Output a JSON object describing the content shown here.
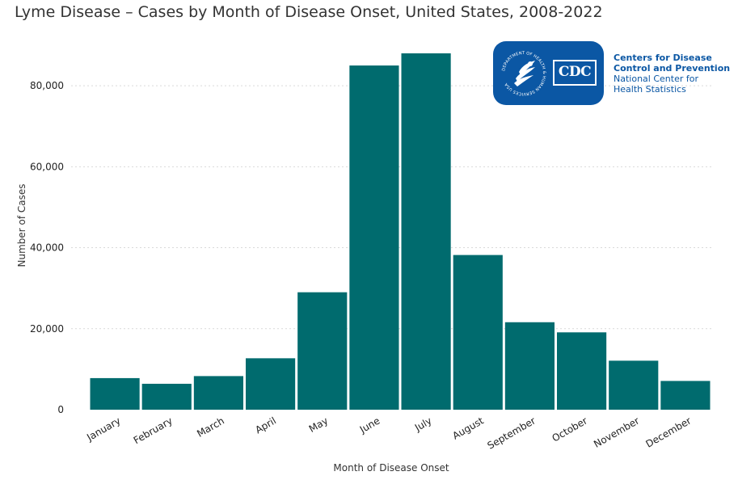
{
  "title": "Lyme Disease – Cases by Month of Disease Onset, United States, 2008-2022",
  "logo": {
    "mark": "CDC",
    "seal_text": "DEPARTMENT OF HEALTH & HUMAN SERVICES USA",
    "org_line1": "Centers for Disease",
    "org_line2": "Control and Prevention",
    "org_line3": "National Center for",
    "org_line4": "Health Statistics",
    "color": "#0b57a4"
  },
  "chart_data": {
    "type": "bar",
    "title": "Lyme Disease – Cases by Month of Disease Onset, United States, 2008-2022",
    "xlabel": "Month of Disease Onset",
    "ylabel": "Number of Cases",
    "categories": [
      "January",
      "February",
      "March",
      "April",
      "May",
      "June",
      "July",
      "August",
      "September",
      "October",
      "November",
      "December"
    ],
    "values": [
      7800,
      6400,
      8300,
      12700,
      29000,
      85000,
      88000,
      38200,
      21600,
      19100,
      12100,
      7100
    ],
    "ylim": [
      0,
      90000
    ],
    "yticks": [
      0,
      20000,
      40000,
      60000,
      80000
    ],
    "ytick_labels": [
      "0",
      "20,000",
      "40,000",
      "60,000",
      "80,000"
    ],
    "bar_color": "#006b6e",
    "grid": true
  }
}
